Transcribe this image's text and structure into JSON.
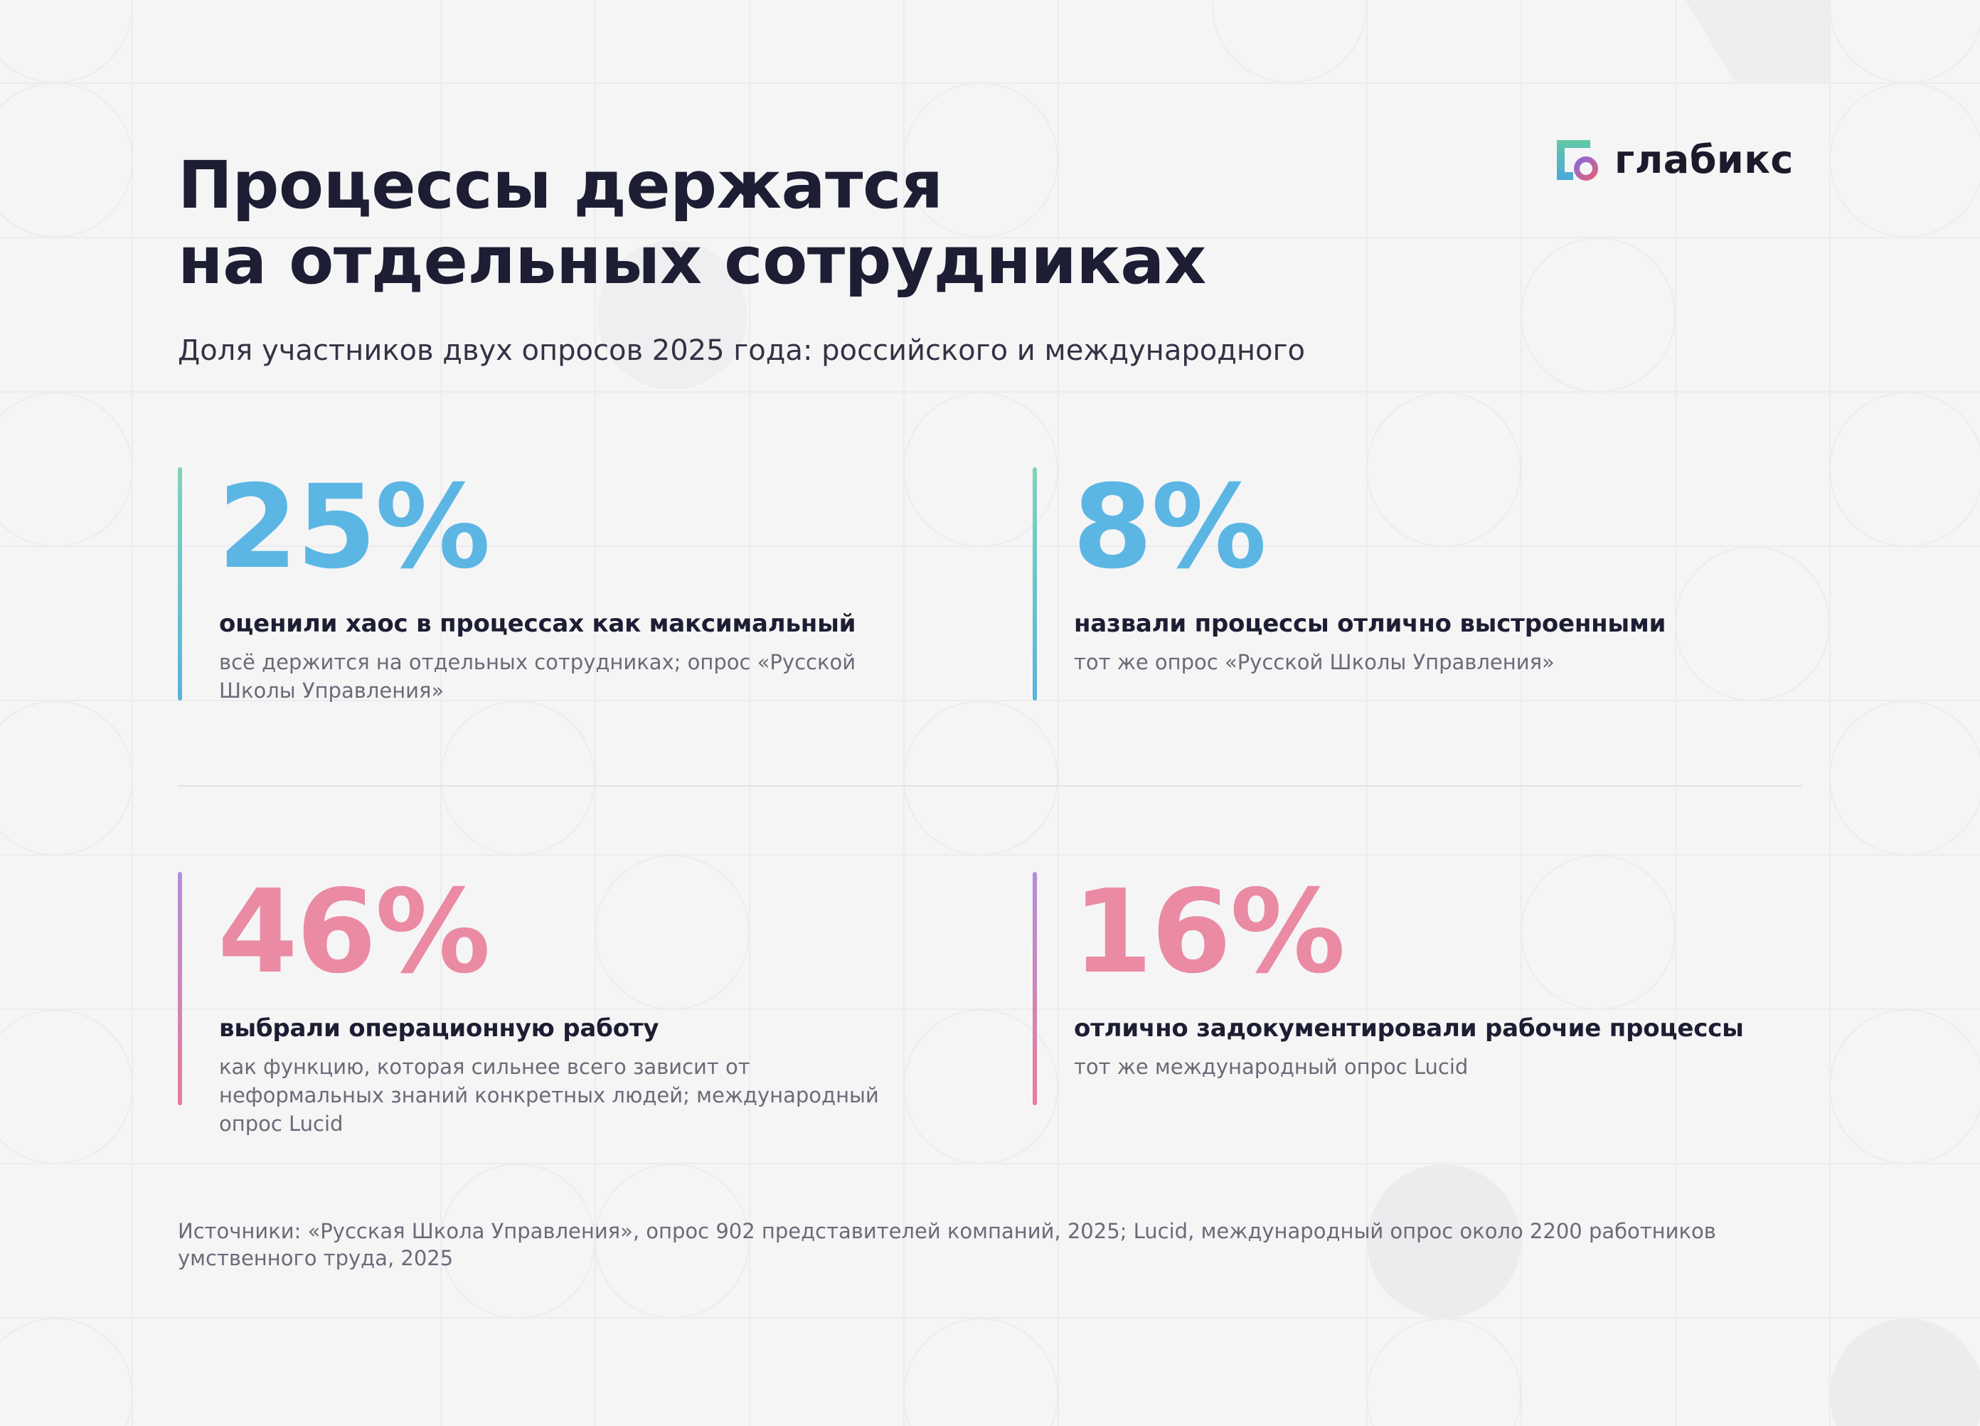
{
  "brand": {
    "name": "глабикс",
    "colors": {
      "accent_blue": "#5cb6e4",
      "accent_pink": "#ea8aa3",
      "title": "#1d1d33"
    }
  },
  "header": {
    "title_line1": "Процессы держатся",
    "title_line2": "на отдельных сотрудниках",
    "subtitle": "Доля участников двух опросов 2025 года: российского и международного"
  },
  "stats": [
    {
      "value": "25%",
      "headline": "оценили хаос в процессах как максимальный",
      "note": "всё держится на отдельных сотрудниках; опрос «Русской Школы Управления»"
    },
    {
      "value": "8%",
      "headline": "назвали процессы отлично выстроенными",
      "note": "тот же опрос «Русской Школы Управления»"
    },
    {
      "value": "46%",
      "headline": "выбрали операционную работу",
      "note": "как функцию, которая сильнее всего зависит от неформальных знаний конкретных людей; международный опрос Lucid"
    },
    {
      "value": "16%",
      "headline": "отлично задокументировали рабочие процессы",
      "note": "тот же международный опрос Lucid"
    }
  ],
  "footer": {
    "sources": "Источники: «Русская Школа Управления», опрос 902 представителей компаний, 2025; Lucid, международный опрос около 2200 работников умственного труда, 2025"
  }
}
